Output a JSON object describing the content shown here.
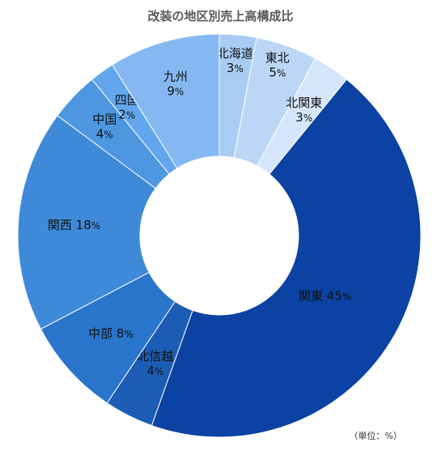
{
  "chart_data": {
    "type": "pie",
    "variant": "donut",
    "title": "改装の地区別売上高構成比",
    "unit_note": "（単位：%）",
    "start": "top, clockwise",
    "slices": [
      {
        "name": "北海道",
        "value": 3,
        "color": "#a8ccf3"
      },
      {
        "name": "東北",
        "value": 5,
        "color": "#bcd7f6"
      },
      {
        "name": "北関東",
        "value": 3,
        "color": "#d6e6fa"
      },
      {
        "name": "関東",
        "value": 45,
        "color": "#0b42a3"
      },
      {
        "name": "北信越",
        "value": 4,
        "color": "#1b5db4"
      },
      {
        "name": "中部",
        "value": 8,
        "color": "#2a75cc"
      },
      {
        "name": "関西",
        "value": 18,
        "color": "#3f8ad8"
      },
      {
        "name": "中国",
        "value": 4,
        "color": "#4d97e1"
      },
      {
        "name": "四国",
        "value": 2,
        "color": "#62a7ee"
      },
      {
        "name": "九州",
        "value": 9,
        "color": "#85b8f1"
      }
    ]
  }
}
